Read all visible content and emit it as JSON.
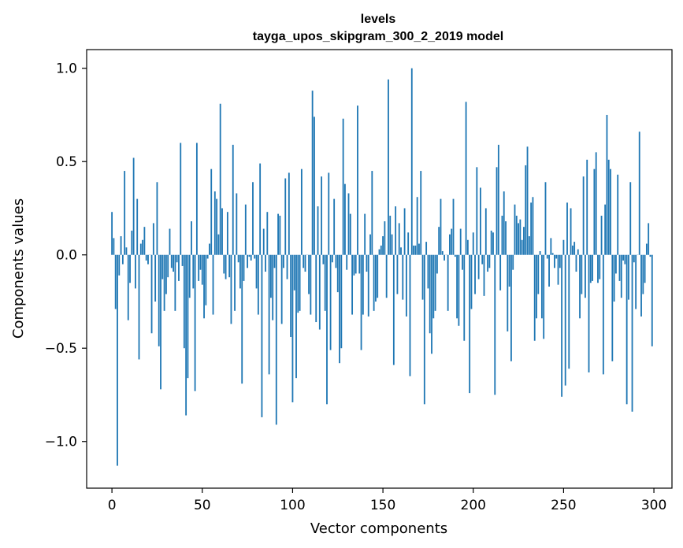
{
  "chart_data": {
    "type": "bar",
    "title": "levels",
    "subtitle": "tayga_upos_skipgram_300_2_2019 model",
    "xlabel": "Vector components",
    "ylabel": "Components values",
    "xlim": [
      -14,
      310
    ],
    "ylim": [
      -1.25,
      1.1
    ],
    "xticks": [
      0,
      50,
      100,
      150,
      200,
      250,
      300
    ],
    "xtick_labels": [
      "0",
      "50",
      "100",
      "150",
      "200",
      "250",
      "300"
    ],
    "yticks": [
      -1.0,
      -0.5,
      0.0,
      0.5,
      1.0
    ],
    "ytick_labels": [
      "−1.0",
      "−0.5",
      "0.0",
      "0.5",
      "1.0"
    ],
    "bar_color": "#1f77b4",
    "grid": false,
    "values": [
      0.23,
      0.09,
      -0.29,
      -1.13,
      -0.11,
      0.1,
      -0.05,
      0.45,
      0.04,
      -0.35,
      -0.15,
      0.13,
      0.52,
      -0.18,
      0.3,
      -0.56,
      0.06,
      0.08,
      0.15,
      -0.03,
      -0.05,
      0.0,
      -0.42,
      0.17,
      -0.25,
      0.39,
      -0.49,
      -0.72,
      -0.13,
      -0.3,
      -0.21,
      -0.12,
      0.14,
      -0.07,
      -0.09,
      -0.3,
      -0.04,
      -0.14,
      0.6,
      -0.06,
      -0.5,
      -0.86,
      -0.66,
      -0.23,
      0.18,
      -0.18,
      -0.73,
      0.6,
      -0.14,
      -0.08,
      -0.16,
      -0.34,
      -0.27,
      -0.02,
      0.06,
      0.46,
      -0.32,
      0.34,
      0.3,
      0.11,
      0.81,
      0.25,
      -0.1,
      -0.13,
      0.23,
      -0.12,
      -0.37,
      0.59,
      -0.3,
      0.33,
      -0.04,
      -0.18,
      -0.69,
      -0.14,
      0.27,
      -0.07,
      -0.01,
      -0.03,
      0.39,
      -0.02,
      -0.18,
      -0.32,
      0.49,
      -0.87,
      0.14,
      -0.09,
      0.23,
      -0.64,
      -0.23,
      -0.35,
      -0.07,
      -0.91,
      0.22,
      0.21,
      -0.37,
      -0.07,
      0.41,
      -0.13,
      0.44,
      -0.44,
      -0.79,
      -0.19,
      -0.66,
      -0.31,
      -0.3,
      0.46,
      -0.07,
      -0.09,
      0.0,
      -0.21,
      -0.32,
      0.88,
      0.74,
      -0.36,
      0.26,
      -0.4,
      0.42,
      -0.05,
      -0.3,
      -0.8,
      0.44,
      -0.51,
      -0.04,
      0.3,
      -0.07,
      -0.2,
      -0.58,
      -0.5,
      0.73,
      0.38,
      -0.08,
      0.33,
      0.22,
      -0.32,
      -0.11,
      -0.1,
      0.8,
      -0.1,
      -0.51,
      -0.32,
      0.22,
      -0.09,
      -0.33,
      0.11,
      0.45,
      -0.3,
      -0.25,
      -0.23,
      0.03,
      0.05,
      0.1,
      0.18,
      -0.23,
      0.94,
      0.21,
      0.11,
      -0.59,
      0.26,
      -0.21,
      0.17,
      0.04,
      -0.24,
      0.25,
      -0.33,
      0.12,
      -0.65,
      1.0,
      0.05,
      0.05,
      0.31,
      0.06,
      0.45,
      -0.24,
      -0.8,
      0.07,
      -0.18,
      -0.42,
      -0.53,
      -0.34,
      -0.3,
      -0.1,
      0.15,
      0.3,
      0.02,
      -0.03,
      0.0,
      -0.3,
      0.11,
      0.14,
      0.3,
      -0.01,
      -0.34,
      -0.38,
      0.14,
      -0.08,
      -0.46,
      0.82,
      0.08,
      -0.74,
      -0.29,
      0.12,
      -0.21,
      0.47,
      -0.13,
      0.36,
      -0.05,
      -0.22,
      0.25,
      -0.09,
      -0.07,
      0.13,
      0.12,
      -0.75,
      0.47,
      0.59,
      -0.19,
      0.21,
      0.34,
      0.18,
      -0.41,
      -0.17,
      -0.57,
      -0.08,
      0.27,
      0.21,
      0.17,
      0.19,
      0.08,
      0.15,
      0.48,
      0.58,
      0.1,
      0.28,
      0.31,
      -0.46,
      -0.34,
      -0.21,
      0.02,
      -0.34,
      -0.45,
      0.39,
      -0.02,
      -0.17,
      0.09,
      0.01,
      -0.07,
      -0.02,
      -0.16,
      -0.07,
      -0.76,
      0.08,
      -0.7,
      0.28,
      -0.61,
      0.25,
      0.05,
      0.07,
      -0.09,
      0.03,
      -0.34,
      -0.21,
      0.42,
      -0.23,
      0.51,
      -0.63,
      -0.15,
      -0.14,
      0.46,
      0.55,
      -0.15,
      -0.13,
      0.21,
      -0.64,
      0.27,
      0.75,
      0.51,
      0.46,
      -0.57,
      -0.25,
      -0.1,
      0.43,
      -0.14,
      -0.23,
      -0.03,
      -0.05,
      -0.8,
      -0.24,
      0.39,
      -0.84,
      -0.04,
      -0.29,
      0.0,
      0.66,
      -0.33,
      -0.21,
      -0.15,
      0.06,
      0.17,
      -0.01,
      -0.49
    ]
  }
}
